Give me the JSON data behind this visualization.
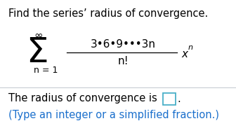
{
  "bg_color": "#eef2f7",
  "panel_color": "#ffffff",
  "title": "Find the series’ radius of convergence.",
  "title_fontsize": 10.5,
  "title_color": "#000000",
  "sigma_fontsize": 36,
  "numerator_text": "3•6•9•••3n",
  "numerator_fontsize": 11,
  "denominator_text": "n!",
  "denominator_fontsize": 11,
  "answer_text": "The radius of convergence is ",
  "answer_fontsize": 10.5,
  "answer_color": "#000000",
  "hint_text": "(Type an integer or a simplified fraction.)",
  "hint_fontsize": 10.5,
  "hint_color": "#1a6fcc",
  "box_edgecolor": "#4ab0c8",
  "box_facecolor": "#ffffff",
  "divider_color": "#c8cdd4",
  "math_fontsize": 11,
  "superscript_fontsize": 8
}
